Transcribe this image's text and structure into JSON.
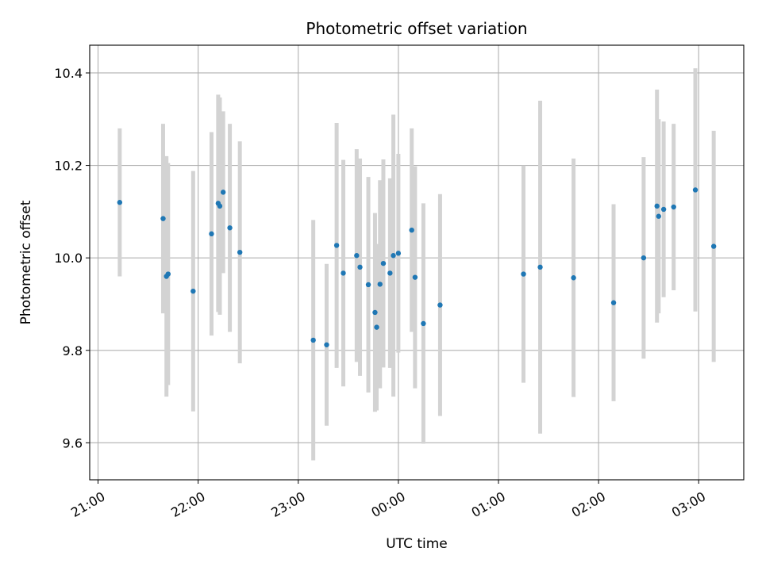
{
  "chart_data": {
    "type": "scatter",
    "title": "Photometric offset variation",
    "xlabel": "UTC time",
    "ylabel": "Photometric offset",
    "grid": true,
    "x_ticks": [
      "21:00",
      "22:00",
      "23:00",
      "00:00",
      "01:00",
      "02:00",
      "03:00"
    ],
    "y_ticks": [
      "9.6",
      "9.8",
      "10.0",
      "10.2",
      "10.4"
    ],
    "xlim": [
      "20:55",
      "03:27"
    ],
    "ylim": [
      9.52,
      10.46
    ],
    "point_color": "#1f77b4",
    "errorbar_color": "#d3d3d3",
    "points": [
      {
        "time": "21:13",
        "y": 10.12,
        "err": 0.16
      },
      {
        "time": "21:39",
        "y": 10.085,
        "err": 0.205
      },
      {
        "time": "21:41",
        "y": 9.96,
        "err": 0.26
      },
      {
        "time": "21:42",
        "y": 9.965,
        "err": 0.24
      },
      {
        "time": "21:57",
        "y": 9.928,
        "err": 0.26
      },
      {
        "time": "22:08",
        "y": 10.052,
        "err": 0.22
      },
      {
        "time": "22:12",
        "y": 10.118,
        "err": 0.235
      },
      {
        "time": "22:13",
        "y": 10.112,
        "err": 0.235
      },
      {
        "time": "22:15",
        "y": 10.142,
        "err": 0.175
      },
      {
        "time": "22:19",
        "y": 10.065,
        "err": 0.225
      },
      {
        "time": "22:25",
        "y": 10.012,
        "err": 0.24
      },
      {
        "time": "23:09",
        "y": 9.822,
        "err": 0.26
      },
      {
        "time": "23:17",
        "y": 9.812,
        "err": 0.175
      },
      {
        "time": "23:23",
        "y": 10.027,
        "err": 0.265
      },
      {
        "time": "23:27",
        "y": 9.967,
        "err": 0.245
      },
      {
        "time": "23:35",
        "y": 10.005,
        "err": 0.23
      },
      {
        "time": "23:37",
        "y": 9.98,
        "err": 0.235
      },
      {
        "time": "23:42",
        "y": 9.942,
        "err": 0.233
      },
      {
        "time": "23:46",
        "y": 9.882,
        "err": 0.215
      },
      {
        "time": "23:47",
        "y": 9.85,
        "err": 0.18
      },
      {
        "time": "23:49",
        "y": 9.943,
        "err": 0.225
      },
      {
        "time": "23:51",
        "y": 9.988,
        "err": 0.225
      },
      {
        "time": "23:55",
        "y": 9.967,
        "err": 0.205
      },
      {
        "time": "23:57",
        "y": 10.005,
        "err": 0.305
      },
      {
        "time": "00:00",
        "y": 10.01,
        "err": 0.215
      },
      {
        "time": "00:08",
        "y": 10.06,
        "err": 0.22
      },
      {
        "time": "00:10",
        "y": 9.958,
        "err": 0.24
      },
      {
        "time": "00:15",
        "y": 9.858,
        "err": 0.26
      },
      {
        "time": "00:25",
        "y": 9.898,
        "err": 0.24
      },
      {
        "time": "01:15",
        "y": 9.965,
        "err": 0.235
      },
      {
        "time": "01:25",
        "y": 9.98,
        "err": 0.36
      },
      {
        "time": "01:45",
        "y": 9.957,
        "err": 0.258
      },
      {
        "time": "02:09",
        "y": 9.903,
        "err": 0.213
      },
      {
        "time": "02:27",
        "y": 10.0,
        "err": 0.218
      },
      {
        "time": "02:35",
        "y": 10.112,
        "err": 0.252
      },
      {
        "time": "02:36",
        "y": 10.09,
        "err": 0.21
      },
      {
        "time": "02:39",
        "y": 10.105,
        "err": 0.19
      },
      {
        "time": "02:45",
        "y": 10.11,
        "err": 0.18
      },
      {
        "time": "02:58",
        "y": 10.147,
        "err": 0.263
      },
      {
        "time": "03:09",
        "y": 10.025,
        "err": 0.25
      }
    ]
  }
}
